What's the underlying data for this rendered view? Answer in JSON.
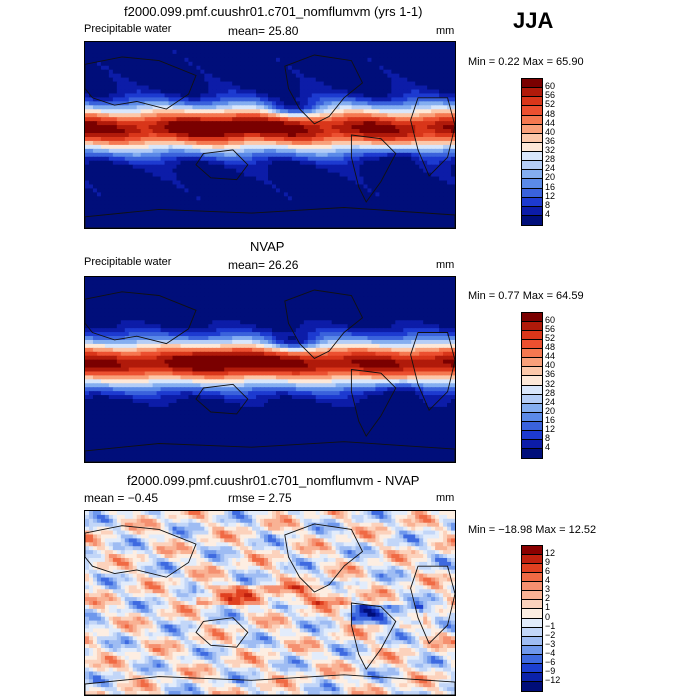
{
  "season": "JJA",
  "panels": [
    {
      "title": "f2000.099.pmf.cuushr01.c701_nomflumvm (yrs 1-1)",
      "left": "Precipitable water",
      "mid": "mean=   25.80",
      "units": "mm",
      "minmax": "Min =    0.22 Max =   65.90",
      "cbar_labels": [
        "60",
        "56",
        "52",
        "48",
        "44",
        "40",
        "36",
        "32",
        "28",
        "24",
        "20",
        "16",
        "12",
        "8",
        "4"
      ],
      "variant": "model"
    },
    {
      "title": "NVAP",
      "left": "Precipitable water",
      "mid": "mean=   26.26",
      "units": "mm",
      "minmax": "Min =    0.77 Max =   64.59",
      "cbar_labels": [
        "60",
        "56",
        "52",
        "48",
        "44",
        "40",
        "36",
        "32",
        "28",
        "24",
        "20",
        "16",
        "12",
        "8",
        "4"
      ],
      "variant": "obs"
    },
    {
      "title": "f2000.099.pmf.cuushr01.c701_nomflumvm - NVAP",
      "left": "mean =   −0.45",
      "mid": "rmse =    2.75",
      "units": "mm",
      "minmax": "Min = −18.98 Max =   12.52",
      "cbar_labels": [
        "12",
        "9",
        "6",
        "4",
        "3",
        "2",
        "1",
        "0",
        "−1",
        "−2",
        "−3",
        "−4",
        "−6",
        "−9",
        "−12"
      ],
      "variant": "diff"
    }
  ],
  "colors": {
    "pw_scale": [
      "#7a0000",
      "#b01a0a",
      "#d9361a",
      "#ec5030",
      "#f57850",
      "#f9a07a",
      "#fcc8aa",
      "#fde8d8",
      "#d8e6fb",
      "#b4cdf6",
      "#84aef0",
      "#5b8ae8",
      "#3a62dc",
      "#1d3ad0",
      "#0c1ca8",
      "#000e7a"
    ],
    "diff_scale": [
      "#8a0000",
      "#c0200e",
      "#e04020",
      "#f06a44",
      "#f59070",
      "#f9b294",
      "#fcd2bc",
      "#fdeee2",
      "#e2ecfb",
      "#c2d6f8",
      "#9ebcf3",
      "#6f98ec",
      "#3e6ae0",
      "#1c3fd0",
      "#0b22aa",
      "#000d78"
    ]
  }
}
